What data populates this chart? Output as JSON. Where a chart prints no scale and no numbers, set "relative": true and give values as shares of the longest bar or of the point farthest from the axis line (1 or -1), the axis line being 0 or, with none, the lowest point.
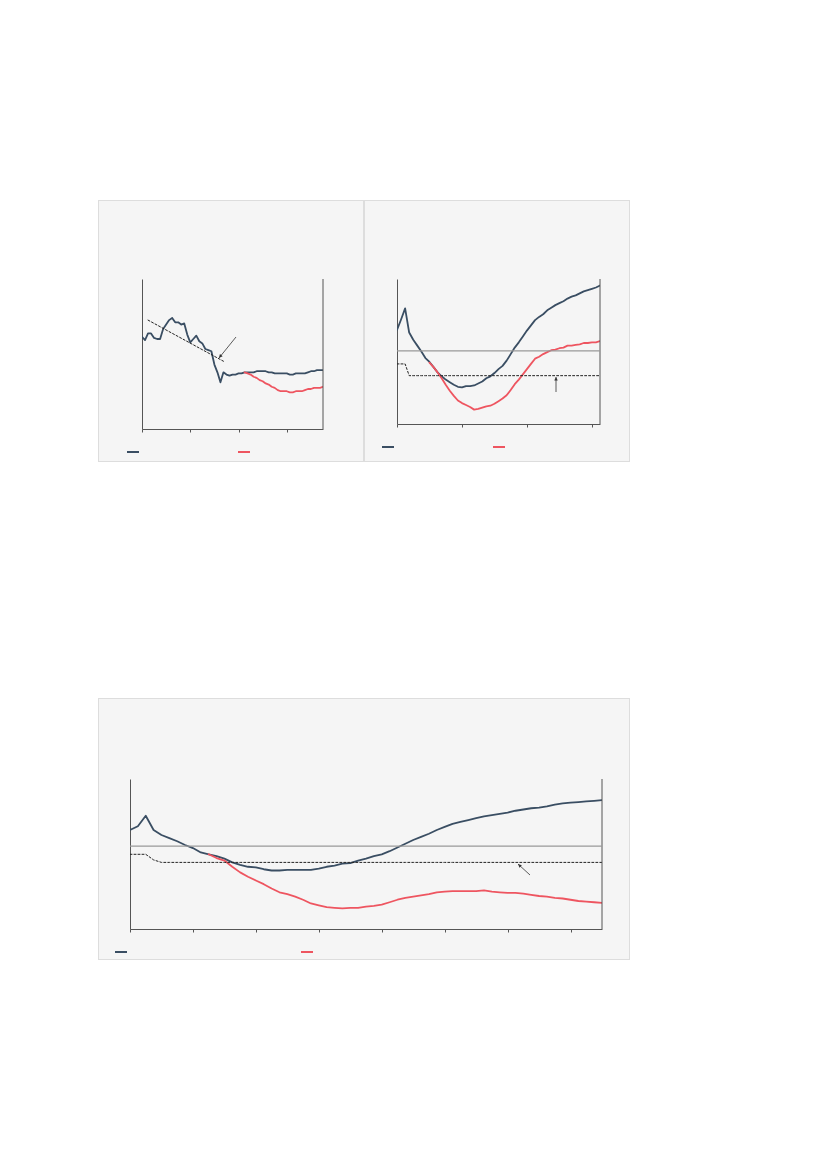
{
  "chart_data": [
    {
      "type": "line",
      "relative": true,
      "categories": [
        null,
        null,
        null,
        null,
        null,
        null,
        null,
        null,
        null,
        null,
        null,
        null,
        null,
        null,
        null,
        null,
        null,
        null,
        null,
        null,
        null,
        null,
        null,
        null,
        null,
        null,
        null,
        null,
        null,
        null,
        null,
        null,
        null,
        null,
        null,
        null,
        null,
        null,
        null,
        null,
        null,
        null,
        null,
        null,
        null,
        null,
        null,
        null,
        null,
        null,
        null,
        null,
        null,
        null,
        null,
        null,
        null,
        null,
        null,
        null,
        null
      ],
      "series": [
        {
          "color": "#3a4e63",
          "line_style": "solid",
          "values": [
            0.83,
            0.8,
            0.86,
            0.86,
            0.82,
            0.81,
            0.81,
            0.9,
            0.94,
            0.98,
            1.0,
            0.96,
            0.96,
            0.94,
            0.95,
            0.85,
            0.78,
            0.81,
            0.84,
            0.79,
            0.77,
            0.72,
            0.71,
            0.7,
            0.58,
            0.51,
            0.42,
            0.51,
            0.49,
            0.48,
            0.49,
            0.49,
            0.5,
            0.5,
            0.51,
            0.51,
            0.51,
            0.51,
            0.52,
            0.52,
            0.52,
            0.52,
            0.51,
            0.51,
            0.5,
            0.5,
            0.5,
            0.5,
            0.5,
            0.49,
            0.49,
            0.5,
            0.5,
            0.5,
            0.5,
            0.51,
            0.52,
            0.52,
            0.53,
            0.53,
            0.53
          ]
        },
        {
          "color": "#ee5560",
          "line_style": "solid",
          "values": [
            null,
            null,
            null,
            null,
            null,
            null,
            null,
            null,
            null,
            null,
            null,
            null,
            null,
            null,
            null,
            null,
            null,
            null,
            null,
            null,
            null,
            null,
            null,
            null,
            null,
            null,
            null,
            null,
            null,
            null,
            null,
            null,
            null,
            null,
            0.51,
            0.5,
            0.49,
            0.47,
            0.46,
            0.44,
            0.43,
            0.41,
            0.4,
            0.38,
            0.37,
            0.35,
            0.34,
            0.34,
            0.34,
            0.33,
            0.33,
            0.34,
            0.34,
            0.34,
            0.35,
            0.36,
            0.36,
            0.37,
            0.37,
            0.37,
            0.38
          ]
        },
        {
          "type": "line",
          "color": "#222222",
          "line_style": "dotted",
          "values": [
            null,
            null,
            0.98,
            null,
            null,
            null,
            null,
            null,
            null,
            null,
            null,
            null,
            null,
            null,
            null,
            null,
            null,
            null,
            null,
            null,
            null,
            null,
            null,
            null,
            null,
            null,
            null,
            0.61,
            null,
            null,
            null,
            null,
            null,
            null,
            null,
            null,
            null,
            null,
            null,
            null,
            null,
            null,
            null,
            null,
            null,
            null,
            null,
            null,
            null,
            null,
            null,
            null,
            null,
            null,
            null,
            null,
            null,
            null,
            null,
            null,
            null
          ]
        }
      ]
    },
    {
      "type": "line",
      "relative": true,
      "categories": [
        null,
        null,
        null,
        null,
        null,
        null,
        null,
        null,
        null,
        null,
        null,
        null,
        null,
        null,
        null,
        null,
        null,
        null,
        null,
        null,
        null,
        null,
        null,
        null,
        null,
        null,
        null,
        null,
        null,
        null,
        null,
        null,
        null,
        null,
        null,
        null,
        null,
        null,
        null,
        null,
        null,
        null,
        null,
        null,
        null,
        null,
        null,
        null,
        null,
        null,
        null
      ],
      "ref_lines": [
        {
          "axis": "y",
          "value": 0,
          "color": "#999999",
          "line_style": "solid"
        }
      ],
      "series": [
        {
          "color": "#3a4e63",
          "line_style": "solid",
          "values": [
            0.32,
            0.48,
            0.65,
            0.28,
            0.17,
            0.08,
            -0.01,
            -0.11,
            -0.17,
            -0.25,
            -0.33,
            -0.39,
            -0.44,
            -0.48,
            -0.52,
            -0.55,
            -0.56,
            -0.54,
            -0.54,
            -0.53,
            -0.5,
            -0.47,
            -0.42,
            -0.39,
            -0.34,
            -0.28,
            -0.23,
            -0.15,
            -0.05,
            0.05,
            0.13,
            0.22,
            0.31,
            0.39,
            0.47,
            0.52,
            0.56,
            0.62,
            0.66,
            0.7,
            0.73,
            0.76,
            0.8,
            0.83,
            0.85,
            0.88,
            0.91,
            0.93,
            0.95,
            0.97,
            1.0
          ]
        },
        {
          "color": "#ee5560",
          "line_style": "solid",
          "values": [
            null,
            null,
            null,
            null,
            null,
            null,
            null,
            null,
            -0.18,
            -0.25,
            -0.33,
            -0.42,
            -0.52,
            -0.61,
            -0.69,
            -0.76,
            -0.8,
            -0.83,
            -0.86,
            -0.9,
            -0.89,
            -0.87,
            -0.85,
            -0.84,
            -0.81,
            -0.77,
            -0.73,
            -0.68,
            -0.6,
            -0.51,
            -0.44,
            -0.36,
            -0.28,
            -0.2,
            -0.12,
            -0.09,
            -0.05,
            -0.02,
            0.01,
            0.02,
            0.04,
            0.05,
            0.08,
            0.08,
            0.09,
            0.1,
            0.12,
            0.12,
            0.13,
            0.13,
            0.15
          ]
        },
        {
          "type": "line",
          "color": "#222222",
          "line_style": "dotted",
          "values": [
            -0.2,
            -0.2,
            -0.2,
            -0.38,
            -0.38,
            -0.38,
            -0.38,
            -0.38,
            -0.38,
            -0.38,
            -0.38,
            -0.38,
            -0.38,
            -0.38,
            -0.38,
            -0.38,
            -0.38,
            -0.38,
            -0.38,
            -0.38,
            -0.38,
            -0.38,
            -0.38,
            -0.38,
            -0.38,
            -0.38,
            -0.38,
            -0.38,
            -0.38,
            -0.38,
            -0.38,
            -0.38,
            -0.38,
            -0.38,
            -0.38,
            -0.38,
            -0.38,
            -0.38,
            -0.38,
            -0.38,
            -0.38,
            -0.38,
            -0.38,
            -0.38,
            -0.38,
            -0.38,
            -0.38,
            -0.38,
            -0.38,
            -0.38,
            -0.38
          ]
        }
      ]
    },
    {
      "type": "line",
      "relative": true,
      "categories": [
        null,
        null,
        null,
        null,
        null,
        null,
        null,
        null,
        null,
        null,
        null,
        null,
        null,
        null,
        null,
        null,
        null,
        null,
        null,
        null,
        null,
        null,
        null,
        null,
        null,
        null,
        null,
        null,
        null,
        null,
        null,
        null,
        null,
        null,
        null,
        null,
        null,
        null,
        null,
        null,
        null,
        null,
        null,
        null,
        null,
        null,
        null,
        null,
        null,
        null,
        null,
        null,
        null,
        null,
        null,
        null,
        null,
        null,
        null,
        null,
        null
      ],
      "ref_lines": [
        {
          "axis": "y",
          "value": 0,
          "color": "#999999",
          "line_style": "solid"
        }
      ],
      "series": [
        {
          "color": "#3a4e63",
          "line_style": "solid",
          "values": [
            0.26,
            0.32,
            0.49,
            0.26,
            0.18,
            0.13,
            0.08,
            0.02,
            -0.03,
            -0.1,
            -0.13,
            -0.16,
            -0.2,
            -0.26,
            -0.3,
            -0.33,
            -0.34,
            -0.37,
            -0.39,
            -0.39,
            -0.38,
            -0.38,
            -0.38,
            -0.38,
            -0.36,
            -0.33,
            -0.31,
            -0.28,
            -0.27,
            -0.23,
            -0.2,
            -0.16,
            -0.13,
            -0.08,
            -0.02,
            0.04,
            0.1,
            0.15,
            0.2,
            0.26,
            0.31,
            0.36,
            0.39,
            0.42,
            0.45,
            0.48,
            0.5,
            0.52,
            0.54,
            0.57,
            0.59,
            0.61,
            0.62,
            0.64,
            0.67,
            0.69,
            0.7,
            0.71,
            0.72,
            0.73,
            0.74
          ]
        },
        {
          "color": "#ee5560",
          "line_style": "solid",
          "values": [
            null,
            null,
            null,
            null,
            null,
            null,
            null,
            null,
            null,
            null,
            -0.13,
            -0.19,
            -0.23,
            -0.33,
            -0.42,
            -0.49,
            -0.55,
            -0.61,
            -0.68,
            -0.74,
            -0.77,
            -0.81,
            -0.86,
            -0.92,
            -0.95,
            -0.98,
            -0.99,
            -1.0,
            -0.99,
            -0.99,
            -0.97,
            -0.96,
            -0.94,
            -0.9,
            -0.86,
            -0.83,
            -0.81,
            -0.79,
            -0.77,
            -0.74,
            -0.73,
            -0.72,
            -0.72,
            -0.72,
            -0.72,
            -0.71,
            -0.73,
            -0.74,
            -0.75,
            -0.75,
            -0.76,
            -0.78,
            -0.8,
            -0.81,
            -0.83,
            -0.84,
            -0.86,
            -0.88,
            -0.89,
            -0.9,
            -0.91
          ]
        },
        {
          "type": "line",
          "color": "#222222",
          "line_style": "dotted",
          "values": [
            -0.13,
            -0.13,
            -0.13,
            -0.22,
            -0.26,
            -0.26,
            -0.26,
            -0.26,
            -0.26,
            -0.26,
            -0.26,
            -0.26,
            -0.26,
            -0.26,
            -0.26,
            -0.26,
            -0.26,
            -0.26,
            -0.26,
            -0.26,
            -0.26,
            -0.26,
            -0.26,
            -0.26,
            -0.26,
            -0.26,
            -0.26,
            -0.26,
            -0.26,
            -0.26,
            -0.26,
            -0.26,
            -0.26,
            -0.26,
            -0.26,
            -0.26,
            -0.26,
            -0.26,
            -0.26,
            -0.26,
            -0.26,
            -0.26,
            -0.26,
            -0.26,
            -0.26,
            -0.26,
            -0.26,
            -0.26,
            -0.26,
            -0.26,
            -0.26,
            -0.26,
            -0.26,
            -0.26,
            -0.26,
            -0.26,
            -0.26,
            -0.26,
            -0.26,
            -0.26,
            -0.26
          ]
        }
      ]
    }
  ]
}
